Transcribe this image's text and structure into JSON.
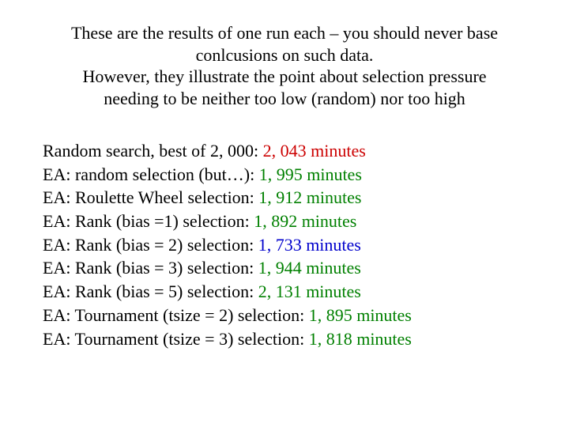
{
  "colors": {
    "text": "#000000",
    "random_value": "#cc0000",
    "default_value": "#008000",
    "highlight_value": "#0000cc",
    "background": "#ffffff"
  },
  "fonts": {
    "family": "Times New Roman",
    "header_size_pt": 22,
    "body_size_pt": 22
  },
  "header": {
    "line1": "These are the results of one run each – you should never base",
    "line2": "conlcusions on such data.",
    "line3": "However, they illustrate the point about selection pressure",
    "line4": "needing to be neither too low (random) nor too high"
  },
  "results": [
    {
      "label": "Random search, best of 2, 000:  ",
      "value": "2, 043 minutes",
      "color": "#cc0000"
    },
    {
      "label": "EA:  random selection (but…): ",
      "value": "1, 995 minutes",
      "color": "#008000"
    },
    {
      "label": "EA:  Roulette Wheel selection: ",
      "value": "1, 912 minutes",
      "color": "#008000"
    },
    {
      "label": "EA:  Rank (bias =1) selection:  ",
      "value": "1, 892 minutes",
      "color": "#008000"
    },
    {
      "label": "EA:  Rank (bias = 2) selection: ",
      "value": "1, 733 minutes",
      "color": "#0000cc"
    },
    {
      "label": "EA:  Rank (bias = 3) selection: ",
      "value": "1, 944 minutes",
      "color": "#008000"
    },
    {
      "label": "EA:  Rank (bias = 5) selection: ",
      "value": "2, 131 minutes",
      "color": "#008000"
    },
    {
      "label": "EA: Tournament (tsize = 2) selection: ",
      "value": "1, 895 minutes",
      "color": "#008000"
    },
    {
      "label": "EA: Tournament (tsize = 3) selection: ",
      "value": "1, 818 minutes",
      "color": "#008000"
    }
  ]
}
